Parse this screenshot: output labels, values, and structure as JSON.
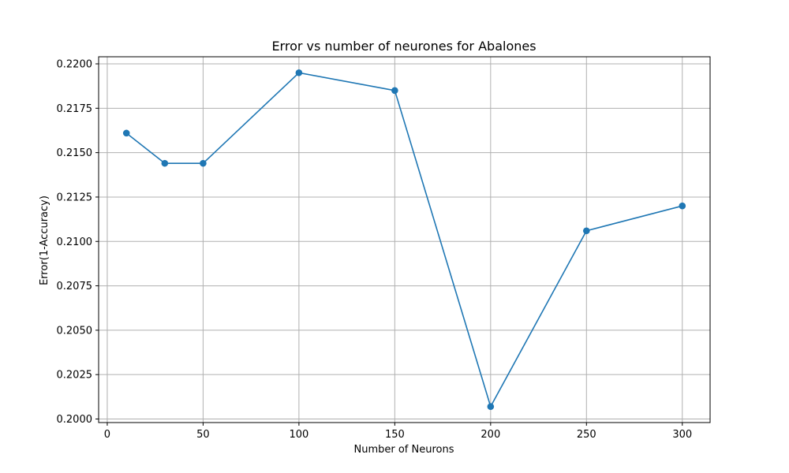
{
  "chart_data": {
    "type": "line",
    "title": "Error vs number of neurones for Abalones",
    "xlabel": "Number of Neurons",
    "ylabel": "Error(1-Accuracy)",
    "grid": true,
    "x": [
      10,
      30,
      50,
      100,
      150,
      200,
      250,
      300
    ],
    "series": [
      {
        "values": [
          0.2161,
          0.2144,
          0.2144,
          0.2195,
          0.2185,
          0.2007,
          0.2106,
          0.212
        ],
        "color": "#1f77b4",
        "marker": "circle"
      }
    ],
    "xlim": [
      -4.5,
      314.5
    ],
    "ylim": [
      0.1998,
      0.2204
    ],
    "xticks": [
      0,
      50,
      100,
      150,
      200,
      250,
      300
    ],
    "xtick_labels": [
      "0",
      "50",
      "100",
      "150",
      "200",
      "250",
      "300"
    ],
    "yticks": [
      0.2,
      0.2025,
      0.205,
      0.2075,
      0.21,
      0.2125,
      0.215,
      0.2175,
      0.22
    ],
    "ytick_labels": [
      "0.2000",
      "0.2025",
      "0.2050",
      "0.2075",
      "0.2100",
      "0.2125",
      "0.2150",
      "0.2175",
      "0.2200"
    ]
  }
}
